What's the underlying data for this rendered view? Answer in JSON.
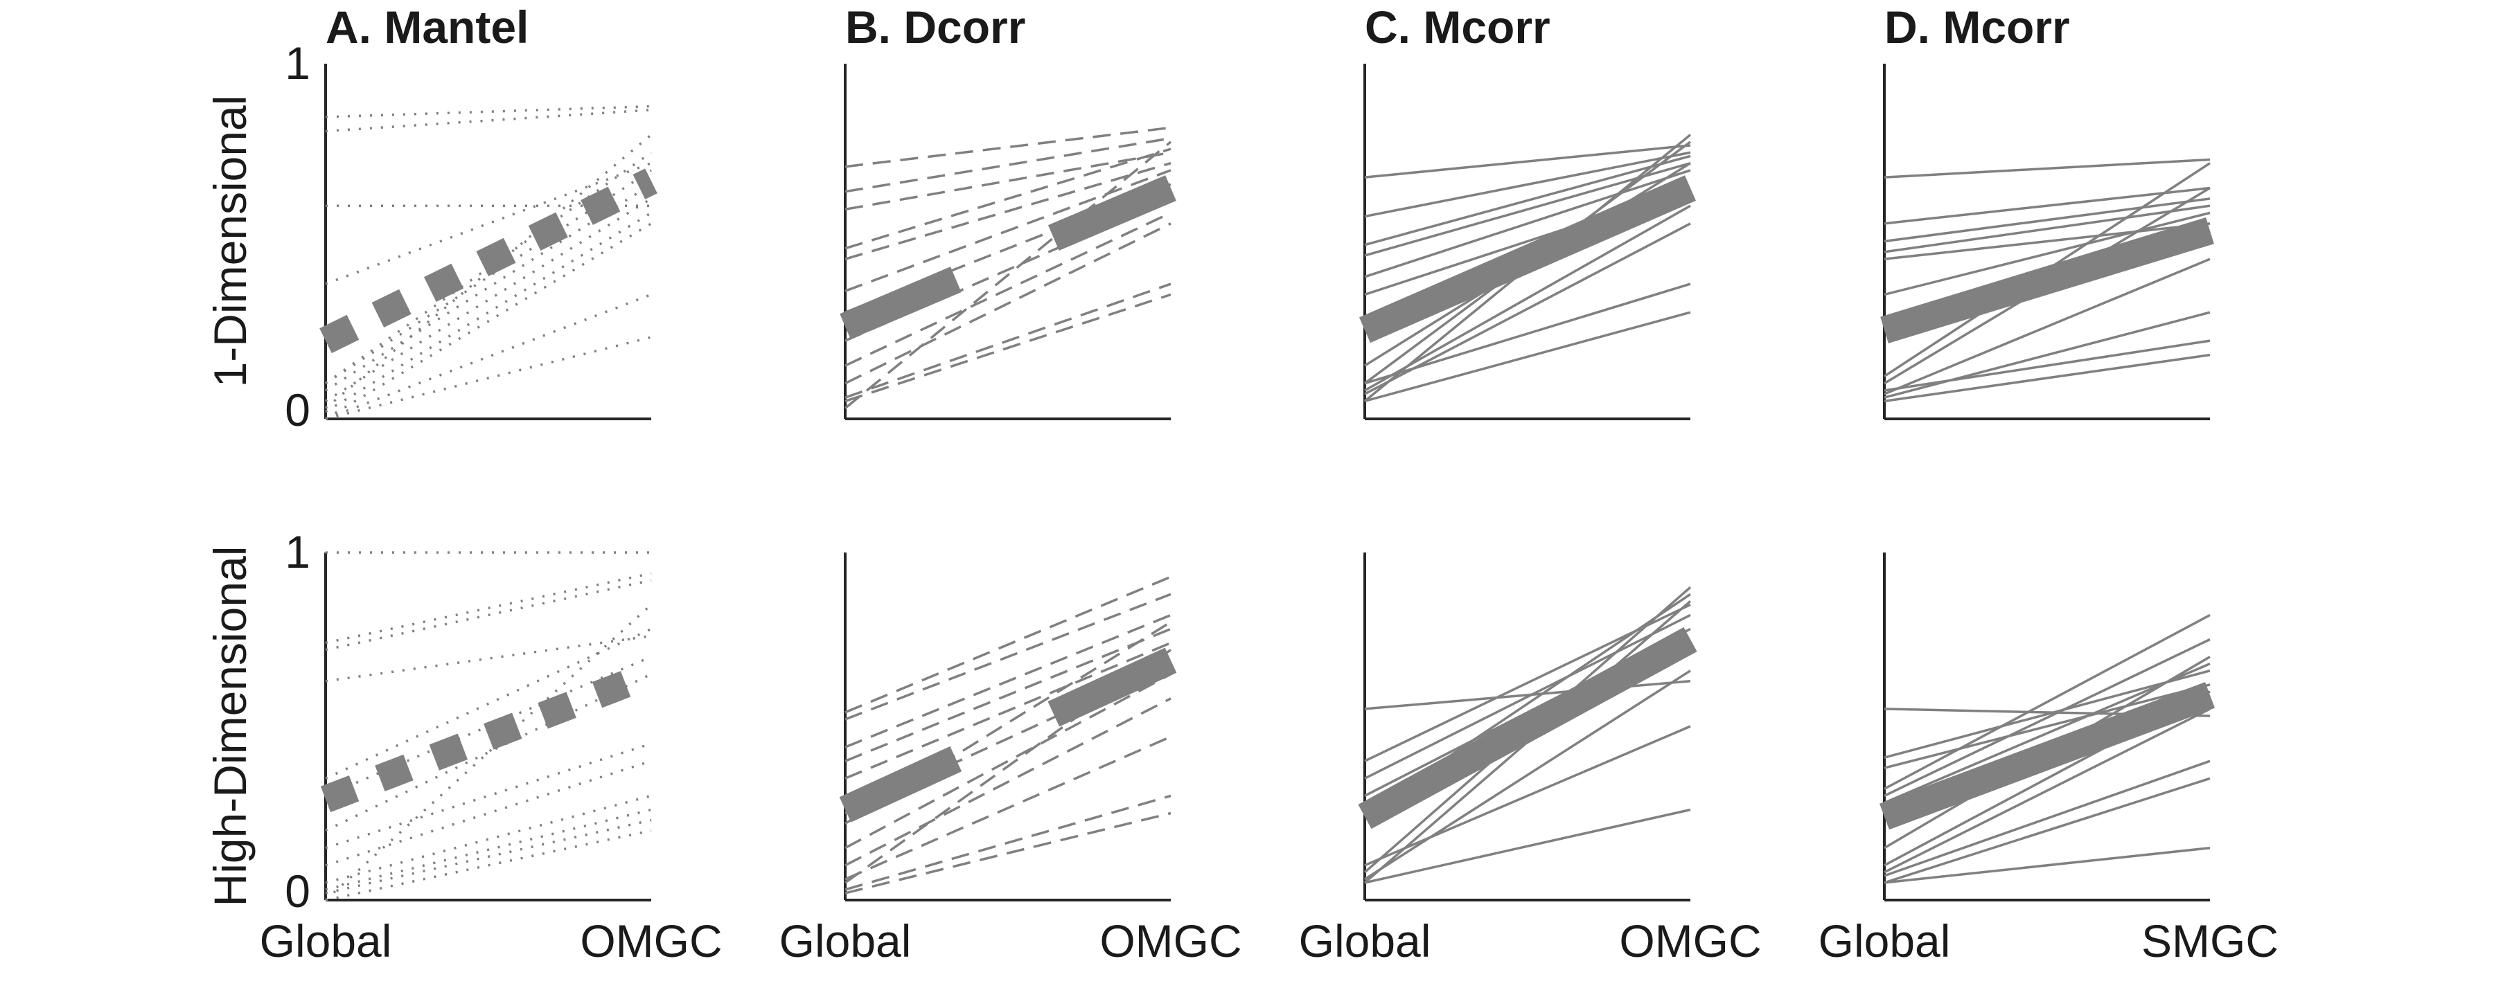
{
  "chart_data": {
    "type": "line",
    "columns": [
      {
        "title": "A. Mantel",
        "line_style": "dotted"
      },
      {
        "title": "B. Dcorr",
        "line_style": "dashed"
      },
      {
        "title": "C. Mcorr",
        "line_style": "solid"
      },
      {
        "title": "D. Mcorr",
        "line_style": "solid"
      }
    ],
    "rows": [
      {
        "ylabel": "1-Dimensional"
      },
      {
        "ylabel": "High-Dimensional"
      }
    ],
    "ylim": [
      0,
      1
    ],
    "yticks": [
      "0",
      "1"
    ],
    "colors": {
      "lines": "#808080",
      "axes": "#262626",
      "text": "#1a1a1a"
    },
    "panels": [
      {
        "row": 0,
        "col": 0,
        "categories": [
          "Global",
          "OMGC"
        ],
        "show_xticks": false,
        "lines": [
          [
            0.85,
            0.88
          ],
          [
            0.81,
            0.87
          ],
          [
            0.6,
            0.6
          ],
          [
            0.38,
            0.72
          ],
          [
            0.1,
            0.7
          ],
          [
            0.08,
            0.66
          ],
          [
            0.05,
            0.62
          ],
          [
            0.02,
            0.58
          ],
          [
            0.0,
            0.55
          ],
          [
            0.1,
            0.75
          ],
          [
            0.0,
            0.35
          ],
          [
            0.0,
            0.23
          ],
          [
            0.03,
            0.8
          ]
        ],
        "mean": [
          0.22,
          0.67
        ]
      },
      {
        "row": 0,
        "col": 1,
        "categories": [
          "Global",
          "OMGC"
        ],
        "show_xticks": false,
        "lines": [
          [
            0.71,
            0.82
          ],
          [
            0.64,
            0.79
          ],
          [
            0.59,
            0.75
          ],
          [
            0.48,
            0.76
          ],
          [
            0.45,
            0.72
          ],
          [
            0.36,
            0.7
          ],
          [
            0.3,
            0.66
          ],
          [
            0.22,
            0.62
          ],
          [
            0.15,
            0.58
          ],
          [
            0.1,
            0.55
          ],
          [
            0.06,
            0.38
          ],
          [
            0.05,
            0.35
          ],
          [
            0.03,
            0.78
          ]
        ],
        "mean": [
          0.26,
          0.65
        ]
      },
      {
        "row": 0,
        "col": 2,
        "categories": [
          "Global",
          "OMGC"
        ],
        "show_xticks": false,
        "lines": [
          [
            0.68,
            0.77
          ],
          [
            0.57,
            0.75
          ],
          [
            0.49,
            0.74
          ],
          [
            0.46,
            0.72
          ],
          [
            0.4,
            0.7
          ],
          [
            0.35,
            0.65
          ],
          [
            0.15,
            0.72
          ],
          [
            0.1,
            0.78
          ],
          [
            0.08,
            0.6
          ],
          [
            0.07,
            0.55
          ],
          [
            0.05,
            0.8
          ],
          [
            0.1,
            0.38
          ],
          [
            0.05,
            0.3
          ]
        ],
        "mean": [
          0.25,
          0.65
        ]
      },
      {
        "row": 0,
        "col": 3,
        "categories": [
          "Global",
          "SMGC"
        ],
        "show_xticks": false,
        "lines": [
          [
            0.68,
            0.73
          ],
          [
            0.55,
            0.65
          ],
          [
            0.5,
            0.62
          ],
          [
            0.47,
            0.6
          ],
          [
            0.45,
            0.55
          ],
          [
            0.35,
            0.58
          ],
          [
            0.25,
            0.5
          ],
          [
            0.12,
            0.72
          ],
          [
            0.1,
            0.65
          ],
          [
            0.07,
            0.45
          ],
          [
            0.06,
            0.3
          ],
          [
            0.08,
            0.22
          ],
          [
            0.05,
            0.18
          ]
        ],
        "mean": [
          0.25,
          0.53
        ]
      },
      {
        "row": 1,
        "col": 0,
        "categories": [
          "Global",
          "OMGC"
        ],
        "show_xticks": true,
        "lines": [
          [
            1.0,
            1.0
          ],
          [
            0.74,
            0.94
          ],
          [
            0.72,
            0.92
          ],
          [
            0.63,
            0.76
          ],
          [
            0.35,
            0.78
          ],
          [
            0.3,
            0.7
          ],
          [
            0.2,
            0.65
          ],
          [
            0.15,
            0.45
          ],
          [
            0.1,
            0.4
          ],
          [
            0.05,
            0.3
          ],
          [
            0.03,
            0.26
          ],
          [
            0.02,
            0.23
          ],
          [
            0.0,
            0.2
          ],
          [
            0.0,
            0.85
          ]
        ],
        "mean": [
          0.29,
          0.65
        ]
      },
      {
        "row": 1,
        "col": 1,
        "categories": [
          "Global",
          "OMGC"
        ],
        "show_xticks": true,
        "lines": [
          [
            0.54,
            0.93
          ],
          [
            0.52,
            0.88
          ],
          [
            0.44,
            0.82
          ],
          [
            0.4,
            0.78
          ],
          [
            0.35,
            0.74
          ],
          [
            0.25,
            0.68
          ],
          [
            0.22,
            0.8
          ],
          [
            0.15,
            0.65
          ],
          [
            0.1,
            0.58
          ],
          [
            0.06,
            0.47
          ],
          [
            0.03,
            0.3
          ],
          [
            0.02,
            0.25
          ],
          [
            0.05,
            0.72
          ]
        ],
        "mean": [
          0.26,
          0.69
        ]
      },
      {
        "row": 1,
        "col": 2,
        "categories": [
          "Global",
          "OMGC"
        ],
        "show_xticks": true,
        "lines": [
          [
            0.55,
            0.63
          ],
          [
            0.4,
            0.85
          ],
          [
            0.35,
            0.82
          ],
          [
            0.3,
            0.78
          ],
          [
            0.27,
            0.72
          ],
          [
            0.25,
            0.88
          ],
          [
            0.08,
            0.9
          ],
          [
            0.05,
            0.86
          ],
          [
            0.06,
            0.66
          ],
          [
            0.1,
            0.5
          ],
          [
            0.05,
            0.26
          ]
        ],
        "mean": [
          0.24,
          0.75
        ]
      },
      {
        "row": 1,
        "col": 3,
        "categories": [
          "Global",
          "SMGC"
        ],
        "show_xticks": true,
        "lines": [
          [
            0.55,
            0.53
          ],
          [
            0.41,
            0.66
          ],
          [
            0.38,
            0.62
          ],
          [
            0.32,
            0.82
          ],
          [
            0.3,
            0.75
          ],
          [
            0.28,
            0.68
          ],
          [
            0.15,
            0.7
          ],
          [
            0.1,
            0.6
          ],
          [
            0.07,
            0.4
          ],
          [
            0.05,
            0.35
          ],
          [
            0.05,
            0.15
          ],
          [
            0.08,
            0.55
          ]
        ],
        "mean": [
          0.24,
          0.59
        ]
      }
    ]
  }
}
